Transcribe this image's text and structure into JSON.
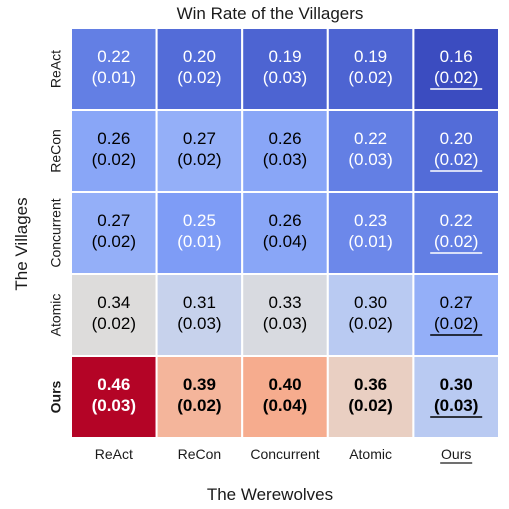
{
  "chart_data": {
    "type": "heatmap",
    "title": "Win Rate of the Villagers",
    "xlabel": "The Werewolves",
    "ylabel": "The Villages",
    "x_categories": [
      "ReAct",
      "ReCon",
      "Concurrent",
      "Atomic",
      "Ours"
    ],
    "y_categories": [
      "ReAct",
      "ReCon",
      "Concurrent",
      "Atomic",
      "Ours"
    ],
    "bold_x_category": "",
    "bold_y_category": "Ours",
    "underlined_x_category": "Ours",
    "values": [
      [
        0.22,
        0.2,
        0.19,
        0.19,
        0.16
      ],
      [
        0.26,
        0.27,
        0.26,
        0.22,
        0.2
      ],
      [
        0.27,
        0.25,
        0.26,
        0.23,
        0.22
      ],
      [
        0.34,
        0.31,
        0.33,
        0.3,
        0.27
      ],
      [
        0.46,
        0.39,
        0.4,
        0.36,
        0.3
      ]
    ],
    "std": [
      [
        "(0.01)",
        "(0.02)",
        "(0.03)",
        "(0.02)",
        "(0.02)"
      ],
      [
        "(0.02)",
        "(0.02)",
        "(0.03)",
        "(0.03)",
        "(0.02)"
      ],
      [
        "(0.02)",
        "(0.01)",
        "(0.04)",
        "(0.01)",
        "(0.02)"
      ],
      [
        "(0.02)",
        "(0.03)",
        "(0.03)",
        "(0.02)",
        "(0.02)"
      ],
      [
        "(0.03)",
        "(0.02)",
        "(0.04)",
        "(0.02)",
        "(0.03)"
      ]
    ],
    "value_labels": [
      [
        "0.22",
        "0.20",
        "0.19",
        "0.19",
        "0.16"
      ],
      [
        "0.26",
        "0.27",
        "0.26",
        "0.22",
        "0.20"
      ],
      [
        "0.27",
        "0.25",
        "0.26",
        "0.23",
        "0.22"
      ],
      [
        "0.34",
        "0.31",
        "0.33",
        "0.30",
        "0.27"
      ],
      [
        "0.46",
        "0.39",
        "0.40",
        "0.36",
        "0.30"
      ]
    ],
    "underlined_cells": [
      [
        0,
        4
      ],
      [
        1,
        4
      ],
      [
        2,
        4
      ],
      [
        3,
        4
      ],
      [
        4,
        4
      ]
    ],
    "bold_cells": [
      [
        4,
        0
      ],
      [
        4,
        1
      ],
      [
        4,
        2
      ],
      [
        4,
        3
      ],
      [
        4,
        4
      ]
    ],
    "colormap": "coolwarm",
    "color_range": [
      0.16,
      0.46
    ],
    "grid": false,
    "legend": "none"
  },
  "colors": {
    "cool": "#3b4cc0",
    "neutral": "#dddddd",
    "warm": "#b40426",
    "cell_border": "#ffffff",
    "text_dark": "#000000",
    "text_light": "#ffffff"
  }
}
